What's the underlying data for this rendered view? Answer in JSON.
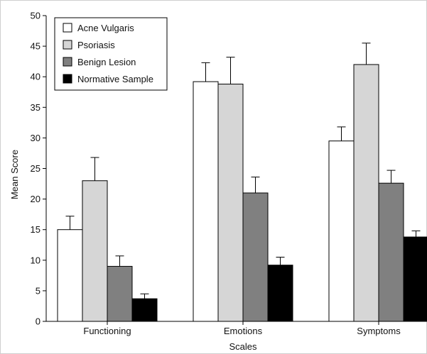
{
  "chart_data": {
    "type": "bar",
    "xlabel": "Scales",
    "ylabel": "Mean Score",
    "ylim": [
      0,
      50
    ],
    "yticks": [
      0,
      5,
      10,
      15,
      20,
      25,
      30,
      35,
      40,
      45,
      50
    ],
    "categories": [
      "Functioning",
      "Emotions",
      "Symptoms"
    ],
    "error_bars": true,
    "legend_position": "top-left",
    "series": [
      {
        "name": "Acne Vulgaris",
        "color": "#ffffff",
        "values": [
          15.0,
          39.2,
          29.5
        ],
        "errors": [
          2.2,
          3.1,
          2.3
        ]
      },
      {
        "name": "Psoriasis",
        "color": "#d6d6d6",
        "values": [
          23.0,
          38.8,
          42.0
        ],
        "errors": [
          3.8,
          4.4,
          3.5
        ]
      },
      {
        "name": "Benign Lesion",
        "color": "#808080",
        "values": [
          9.0,
          21.0,
          22.6
        ],
        "errors": [
          1.7,
          2.6,
          2.1
        ]
      },
      {
        "name": "Normative Sample",
        "color": "#000000",
        "values": [
          3.7,
          9.2,
          13.8
        ],
        "errors": [
          0.8,
          1.3,
          1.0
        ]
      }
    ]
  }
}
